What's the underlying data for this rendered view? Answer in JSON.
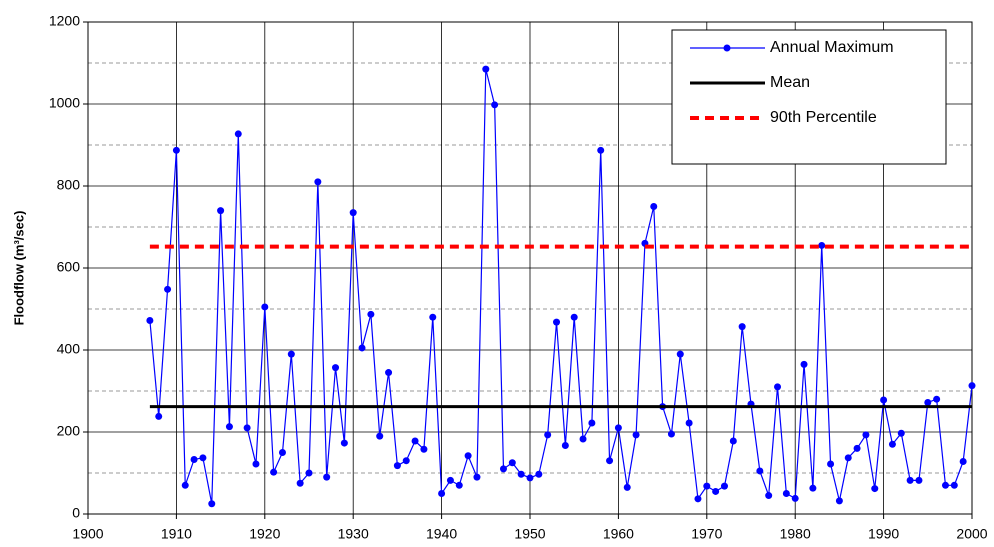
{
  "chart_data": {
    "type": "line",
    "ylabel": "Floodflow (m³/sec)",
    "x": [
      1907,
      1908,
      1909,
      1910,
      1911,
      1912,
      1913,
      1914,
      1915,
      1916,
      1917,
      1918,
      1919,
      1920,
      1921,
      1922,
      1923,
      1924,
      1925,
      1926,
      1927,
      1928,
      1929,
      1930,
      1931,
      1932,
      1933,
      1934,
      1935,
      1936,
      1937,
      1938,
      1939,
      1940,
      1941,
      1942,
      1943,
      1944,
      1945,
      1946,
      1947,
      1948,
      1949,
      1950,
      1951,
      1952,
      1953,
      1954,
      1955,
      1956,
      1957,
      1958,
      1959,
      1960,
      1961,
      1962,
      1963,
      1964,
      1965,
      1966,
      1967,
      1968,
      1969,
      1970,
      1971,
      1972,
      1973,
      1974,
      1975,
      1976,
      1977,
      1978,
      1979,
      1980,
      1981,
      1982,
      1983,
      1984,
      1985,
      1986,
      1987,
      1988,
      1989,
      1990,
      1991,
      1992,
      1993,
      1994,
      1995,
      1996,
      1997,
      1998,
      1999,
      2000
    ],
    "series": [
      {
        "name": "Annual Maximum",
        "color": "#0000ff",
        "linestyle": "solid",
        "marker": "circle",
        "values": [
          472,
          238,
          548,
          887,
          70,
          133,
          137,
          25,
          740,
          213,
          927,
          210,
          122,
          505,
          102,
          150,
          390,
          75,
          100,
          810,
          90,
          357,
          173,
          735,
          405,
          487,
          190,
          345,
          118,
          130,
          178,
          158,
          480,
          50,
          82,
          70,
          142,
          90,
          1085,
          998,
          110,
          125,
          97,
          88,
          97,
          193,
          468,
          167,
          480,
          183,
          222,
          887,
          130,
          210,
          65,
          193,
          660,
          750,
          262,
          195,
          390,
          222,
          37,
          68,
          55,
          68,
          178,
          457,
          268,
          105,
          45,
          310,
          50,
          38,
          365,
          63,
          655,
          122,
          32,
          137,
          160,
          193,
          62,
          278,
          170,
          197,
          82,
          82,
          272,
          280,
          70,
          70,
          128,
          313
        ]
      },
      {
        "name": "Mean",
        "color": "#000000",
        "linestyle": "solid",
        "x": [
          1907,
          2000
        ],
        "values": [
          262,
          262
        ]
      },
      {
        "name": "90th Percentile",
        "color": "#ff0000",
        "linestyle": "dashed",
        "x": [
          1907,
          2000
        ],
        "values": [
          652,
          652
        ]
      }
    ],
    "xlim": [
      1900,
      2000
    ],
    "xticks": [
      1900,
      1910,
      1920,
      1930,
      1940,
      1950,
      1960,
      1970,
      1980,
      1990,
      2000
    ],
    "ylim": [
      0,
      1200
    ],
    "yticks": [
      0,
      200,
      400,
      600,
      800,
      1000,
      1200
    ],
    "yminorticks": [
      100,
      300,
      500,
      700,
      900,
      1100
    ],
    "grid": true,
    "legend": "upper right"
  }
}
